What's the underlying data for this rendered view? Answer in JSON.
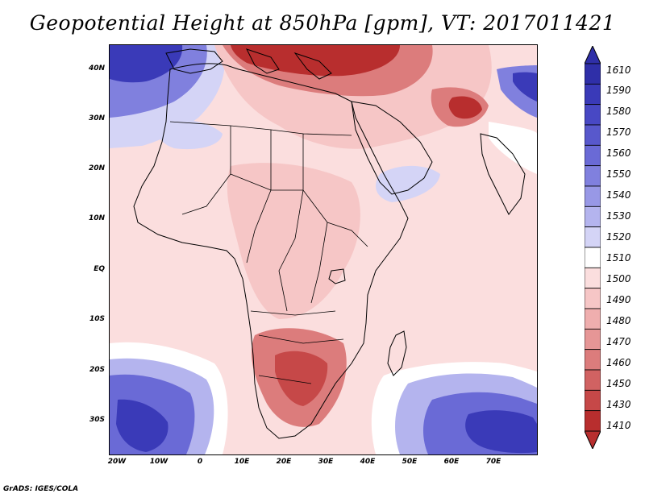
{
  "title": "Geopotential Height at 850hPa [gpm], VT: 2017011421",
  "credit": "GrADS: IGES/COLA",
  "map": {
    "lat_labels": [
      "40N",
      "30N",
      "20N",
      "10N",
      "EQ",
      "10S",
      "20S",
      "30S"
    ],
    "lon_labels": [
      "20W",
      "10W",
      "0",
      "10E",
      "20E",
      "30E",
      "40E",
      "50E",
      "60E",
      "70E"
    ],
    "lat_values": [
      40,
      30,
      20,
      10,
      0,
      -10,
      -20,
      -30
    ],
    "lon_values": [
      -20,
      -10,
      0,
      10,
      20,
      30,
      40,
      50,
      60,
      70
    ],
    "lon_range": [
      -22,
      80
    ],
    "lat_range": [
      -37,
      45
    ]
  },
  "colorbar": {
    "labels": [
      "1610",
      "1590",
      "1580",
      "1570",
      "1560",
      "1550",
      "1540",
      "1530",
      "1520",
      "1510",
      "1500",
      "1490",
      "1480",
      "1470",
      "1460",
      "1450",
      "1430",
      "1410"
    ],
    "colors": [
      "#2f2fa8",
      "#3a3ab8",
      "#4848c4",
      "#5858cc",
      "#6a6ad6",
      "#8080de",
      "#9898e6",
      "#b4b4ee",
      "#d4d4f6",
      "#ffffff",
      "#fbdede",
      "#f6c6c6",
      "#efaeae",
      "#e69696",
      "#dc7c7c",
      "#d16262",
      "#c64848",
      "#b82e2e"
    ]
  },
  "colors": {
    "deep_red": "#b82e2e",
    "mid_red": "#dc7c7c",
    "light_red": "#f6c6c6",
    "pale": "#fbdede",
    "blue_light": "#d4d4f6",
    "blue_mid": "#8080de",
    "blue_deep": "#3a3ab8"
  }
}
